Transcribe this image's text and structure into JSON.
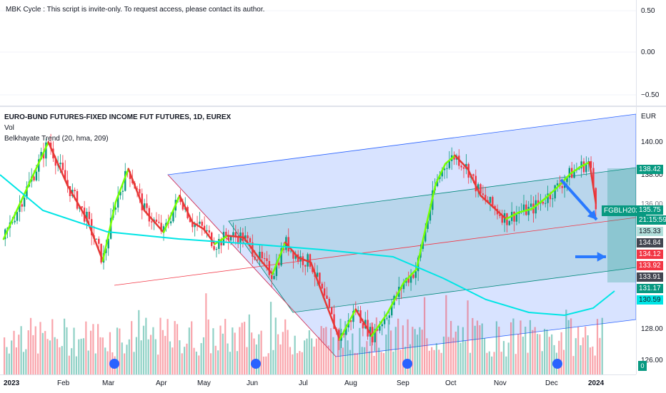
{
  "top_pane": {
    "indicator_text": "MBK Cycle : This script is invite-only. To request access, please contact its author.",
    "axis_labels": [
      "0.50",
      "0.00",
      "−0.50"
    ]
  },
  "legend": {
    "symbol_line": "EURO-BUND FUTURES-FIXED INCOME FUT FUTURES, 1D, EUREX",
    "vol_line": "Vol",
    "indicator_line": "Belkhayate Trend (20, hma, 209)"
  },
  "price_axis": {
    "currency": "EUR",
    "ticks": [
      "140.00",
      "138.00",
      "136.00",
      "128.00",
      "126.00"
    ],
    "tags": [
      {
        "value": "138.42",
        "color": "#089981"
      },
      {
        "value": "135.75",
        "color": "#089981"
      },
      {
        "value": "21:15:59",
        "color": "#089981"
      },
      {
        "value": "135.33",
        "color": "#b2dfdb"
      },
      {
        "value": "134.84",
        "color": "#434651"
      },
      {
        "value": "134.12",
        "color": "#f23645"
      },
      {
        "value": "133.92",
        "color": "#f23645"
      },
      {
        "value": "133.91",
        "color": "#434651"
      },
      {
        "value": "131.17",
        "color": "#089981"
      },
      {
        "value": "130.59",
        "color": "#00e5e5"
      }
    ],
    "settings_label": "0"
  },
  "symbol_tag": "FGBLH2024",
  "time_axis": [
    "2023",
    "Feb",
    "Mar",
    "Apr",
    "May",
    "Jun",
    "Jul",
    "Aug",
    "Sep",
    "Oct",
    "Nov",
    "Dec",
    "2024"
  ],
  "colors": {
    "up": "#089981",
    "down": "#f23645",
    "channel_blue": "#2962ff",
    "channel_green": "#00897b",
    "trend_cyan": "#00e5e5"
  },
  "chart_data": {
    "type": "line",
    "ylim": [
      125.5,
      141.5
    ],
    "x_range_days": 375,
    "series": [
      {
        "name": "FGBLH2024",
        "x": [
          0,
          14,
          28,
          40,
          52,
          62,
          70,
          78,
          88,
          100,
          110,
          118,
          125,
          132,
          140,
          150,
          160,
          168,
          176,
          184,
          192,
          200,
          210,
          220,
          230,
          240,
          250,
          258,
          264,
          270,
          276,
          282,
          290,
          298,
          306,
          314,
          322,
          330,
          338,
          346,
          354,
          360,
          366,
          370
        ],
        "values": [
          133.6,
          136.5,
          139.4,
          136.8,
          134.8,
          132.3,
          135.8,
          137.8,
          135.3,
          134.0,
          136.2,
          134.6,
          134.2,
          133.3,
          133.8,
          133.7,
          132.4,
          131.5,
          133.4,
          132.5,
          132.2,
          130.1,
          127.6,
          129.4,
          127.8,
          129.2,
          131.0,
          131.8,
          134.4,
          136.9,
          138.1,
          138.6,
          137.8,
          136.2,
          135.5,
          134.8,
          135.2,
          135.4,
          136.0,
          136.7,
          137.5,
          137.9,
          138.2,
          135.75
        ]
      }
    ]
  }
}
